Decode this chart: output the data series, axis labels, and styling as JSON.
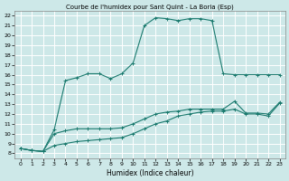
{
  "title": "Courbe de l'humidex pour Sant Quint - La Boria (Esp)",
  "xlabel": "Humidex (Indice chaleur)",
  "bg_color": "#cde8e8",
  "grid_color": "#ffffff",
  "line_color": "#1a7a6e",
  "xlim": [
    -0.5,
    23.5
  ],
  "ylim": [
    7.5,
    22.5
  ],
  "xticks": [
    0,
    1,
    2,
    3,
    4,
    5,
    6,
    7,
    8,
    9,
    10,
    11,
    12,
    13,
    14,
    15,
    16,
    17,
    18,
    19,
    20,
    21,
    22,
    23
  ],
  "yticks": [
    8,
    9,
    10,
    11,
    12,
    13,
    14,
    15,
    16,
    17,
    18,
    19,
    20,
    21,
    22
  ],
  "line1_x": [
    0,
    1,
    2,
    3,
    4,
    5,
    6,
    7,
    8,
    9,
    10,
    11,
    12,
    13,
    14,
    15,
    16,
    17,
    18,
    19,
    20,
    21,
    22,
    23
  ],
  "line1_y": [
    8.5,
    8.3,
    8.2,
    10.4,
    15.4,
    15.7,
    16.1,
    16.1,
    15.6,
    16.1,
    17.2,
    21.0,
    21.8,
    21.7,
    21.5,
    21.7,
    21.7,
    21.5,
    16.1,
    16.0,
    16.0,
    16.0,
    16.0,
    16.0
  ],
  "line2_x": [
    0,
    1,
    2,
    3,
    4,
    5,
    6,
    7,
    8,
    9,
    10,
    11,
    12,
    13,
    14,
    15,
    16,
    17,
    18,
    19,
    20,
    21,
    22,
    23
  ],
  "line2_y": [
    8.5,
    8.3,
    8.2,
    10.0,
    10.3,
    10.5,
    10.5,
    10.5,
    10.5,
    10.6,
    11.0,
    11.5,
    12.0,
    12.2,
    12.3,
    12.5,
    12.5,
    12.5,
    12.5,
    13.3,
    12.1,
    12.1,
    12.0,
    13.2
  ],
  "line3_x": [
    0,
    1,
    2,
    3,
    4,
    5,
    6,
    7,
    8,
    9,
    10,
    11,
    12,
    13,
    14,
    15,
    16,
    17,
    18,
    19,
    20,
    21,
    22,
    23
  ],
  "line3_y": [
    8.5,
    8.3,
    8.2,
    8.8,
    9.0,
    9.2,
    9.3,
    9.4,
    9.5,
    9.6,
    10.0,
    10.5,
    11.0,
    11.3,
    11.8,
    12.0,
    12.2,
    12.3,
    12.3,
    12.5,
    12.0,
    12.0,
    11.8,
    13.1
  ],
  "title_fontsize": 5,
  "xlabel_fontsize": 5.5,
  "tick_fontsize": 4.5
}
